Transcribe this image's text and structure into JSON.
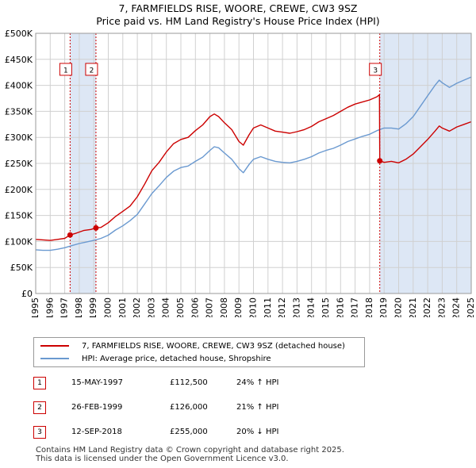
{
  "header": {
    "title": "7, FARMFIELDS RISE, WOORE, CREWE, CW3 9SZ",
    "subtitle": "Price paid vs. HM Land Registry's House Price Index (HPI)"
  },
  "colors": {
    "property": "#cc0000",
    "hpi": "#6a99d0",
    "shade": "#dde7f5",
    "grid": "#d0d0d0"
  },
  "chart_data": {
    "type": "line",
    "xlim": [
      1995,
      2025
    ],
    "ylim": [
      0,
      500000
    ],
    "y_ticks": [
      {
        "value": 0,
        "label": "£0"
      },
      {
        "value": 50000,
        "label": "£50K"
      },
      {
        "value": 100000,
        "label": "£100K"
      },
      {
        "value": 150000,
        "label": "£150K"
      },
      {
        "value": 200000,
        "label": "£200K"
      },
      {
        "value": 250000,
        "label": "£250K"
      },
      {
        "value": 300000,
        "label": "£300K"
      },
      {
        "value": 350000,
        "label": "£350K"
      },
      {
        "value": 400000,
        "label": "£400K"
      },
      {
        "value": 450000,
        "label": "£450K"
      },
      {
        "value": 500000,
        "label": "£500K"
      }
    ],
    "x_ticks": [
      "1995",
      "1996",
      "1997",
      "1998",
      "1999",
      "2000",
      "2001",
      "2002",
      "2003",
      "2004",
      "2005",
      "2006",
      "2007",
      "2008",
      "2009",
      "2010",
      "2011",
      "2012",
      "2013",
      "2014",
      "2015",
      "2016",
      "2017",
      "2018",
      "2019",
      "2020",
      "2021",
      "2022",
      "2023",
      "2024",
      "2025"
    ],
    "shaded_spans": [
      [
        1997.37,
        1999.15
      ],
      [
        2018.7,
        2025
      ]
    ],
    "series": [
      {
        "name": "7, FARMFIELDS RISE, WOORE, CREWE, CW3 9SZ (detached house)",
        "color": "#cc0000",
        "points": [
          [
            1995.0,
            104000
          ],
          [
            1995.5,
            103000
          ],
          [
            1996.0,
            102000
          ],
          [
            1996.5,
            104000
          ],
          [
            1997.0,
            106000
          ],
          [
            1997.37,
            112500
          ],
          [
            1997.8,
            116000
          ],
          [
            1998.3,
            121000
          ],
          [
            1998.8,
            123000
          ],
          [
            1999.15,
            126000
          ],
          [
            1999.5,
            127000
          ],
          [
            2000.0,
            136000
          ],
          [
            2000.5,
            148000
          ],
          [
            2001.0,
            158000
          ],
          [
            2001.5,
            168000
          ],
          [
            2002.0,
            186000
          ],
          [
            2002.5,
            210000
          ],
          [
            2003.0,
            236000
          ],
          [
            2003.5,
            252000
          ],
          [
            2004.0,
            272000
          ],
          [
            2004.5,
            288000
          ],
          [
            2005.0,
            296000
          ],
          [
            2005.5,
            300000
          ],
          [
            2006.0,
            313000
          ],
          [
            2006.5,
            324000
          ],
          [
            2007.0,
            340000
          ],
          [
            2007.3,
            345000
          ],
          [
            2007.6,
            340000
          ],
          [
            2008.0,
            328000
          ],
          [
            2008.5,
            315000
          ],
          [
            2009.0,
            292000
          ],
          [
            2009.3,
            285000
          ],
          [
            2009.7,
            305000
          ],
          [
            2010.0,
            318000
          ],
          [
            2010.5,
            324000
          ],
          [
            2011.0,
            318000
          ],
          [
            2011.5,
            312000
          ],
          [
            2012.0,
            310000
          ],
          [
            2012.5,
            308000
          ],
          [
            2013.0,
            311000
          ],
          [
            2013.5,
            315000
          ],
          [
            2014.0,
            321000
          ],
          [
            2014.5,
            330000
          ],
          [
            2015.0,
            336000
          ],
          [
            2015.5,
            342000
          ],
          [
            2016.0,
            350000
          ],
          [
            2016.5,
            358000
          ],
          [
            2017.0,
            364000
          ],
          [
            2017.5,
            368000
          ],
          [
            2018.0,
            372000
          ],
          [
            2018.5,
            378000
          ],
          [
            2018.68,
            382000
          ],
          [
            2018.7,
            255000
          ],
          [
            2019.0,
            252000
          ],
          [
            2019.5,
            254000
          ],
          [
            2020.0,
            251000
          ],
          [
            2020.5,
            258000
          ],
          [
            2021.0,
            268000
          ],
          [
            2021.5,
            282000
          ],
          [
            2022.0,
            296000
          ],
          [
            2022.5,
            312000
          ],
          [
            2022.8,
            322000
          ],
          [
            2023.0,
            318000
          ],
          [
            2023.5,
            312000
          ],
          [
            2024.0,
            320000
          ],
          [
            2024.5,
            325000
          ],
          [
            2025.0,
            330000
          ]
        ]
      },
      {
        "name": "HPI: Average price, detached house, Shropshire",
        "color": "#6a99d0",
        "points": [
          [
            1995.0,
            84000
          ],
          [
            1995.5,
            83000
          ],
          [
            1996.0,
            83000
          ],
          [
            1996.5,
            85000
          ],
          [
            1997.0,
            88000
          ],
          [
            1997.5,
            92000
          ],
          [
            1998.0,
            96000
          ],
          [
            1998.5,
            99000
          ],
          [
            1999.0,
            102000
          ],
          [
            1999.5,
            106000
          ],
          [
            2000.0,
            112000
          ],
          [
            2000.5,
            122000
          ],
          [
            2001.0,
            130000
          ],
          [
            2001.5,
            140000
          ],
          [
            2002.0,
            152000
          ],
          [
            2002.5,
            172000
          ],
          [
            2003.0,
            192000
          ],
          [
            2003.5,
            207000
          ],
          [
            2004.0,
            223000
          ],
          [
            2004.5,
            235000
          ],
          [
            2005.0,
            242000
          ],
          [
            2005.5,
            245000
          ],
          [
            2006.0,
            254000
          ],
          [
            2006.5,
            262000
          ],
          [
            2007.0,
            275000
          ],
          [
            2007.3,
            282000
          ],
          [
            2007.6,
            280000
          ],
          [
            2008.0,
            270000
          ],
          [
            2008.5,
            258000
          ],
          [
            2009.0,
            240000
          ],
          [
            2009.3,
            232000
          ],
          [
            2009.7,
            248000
          ],
          [
            2010.0,
            258000
          ],
          [
            2010.5,
            263000
          ],
          [
            2011.0,
            258000
          ],
          [
            2011.5,
            254000
          ],
          [
            2012.0,
            252000
          ],
          [
            2012.5,
            251000
          ],
          [
            2013.0,
            254000
          ],
          [
            2013.5,
            258000
          ],
          [
            2014.0,
            263000
          ],
          [
            2014.5,
            270000
          ],
          [
            2015.0,
            275000
          ],
          [
            2015.5,
            279000
          ],
          [
            2016.0,
            285000
          ],
          [
            2016.5,
            292000
          ],
          [
            2017.0,
            297000
          ],
          [
            2017.5,
            302000
          ],
          [
            2018.0,
            306000
          ],
          [
            2018.5,
            313000
          ],
          [
            2019.0,
            318000
          ],
          [
            2019.5,
            318000
          ],
          [
            2020.0,
            316000
          ],
          [
            2020.5,
            326000
          ],
          [
            2021.0,
            340000
          ],
          [
            2021.5,
            360000
          ],
          [
            2022.0,
            380000
          ],
          [
            2022.5,
            400000
          ],
          [
            2022.8,
            410000
          ],
          [
            2023.0,
            405000
          ],
          [
            2023.5,
            396000
          ],
          [
            2024.0,
            404000
          ],
          [
            2024.5,
            410000
          ],
          [
            2025.0,
            416000
          ]
        ]
      }
    ],
    "sales": [
      {
        "num": "1",
        "date": "15-MAY-1997",
        "price": "£112,500",
        "hpi": "24% ↑ HPI",
        "x": 1997.37,
        "value": 112500
      },
      {
        "num": "2",
        "date": "26-FEB-1999",
        "price": "£126,000",
        "hpi": "21% ↑ HPI",
        "x": 1999.15,
        "value": 126000
      },
      {
        "num": "3",
        "date": "12-SEP-2018",
        "price": "£255,000",
        "hpi": "20% ↓ HPI",
        "x": 2018.7,
        "value": 255000
      }
    ]
  },
  "legend": {
    "property": "7, FARMFIELDS RISE, WOORE, CREWE, CW3 9SZ (detached house)",
    "hpi": "HPI: Average price, detached house, Shropshire"
  },
  "footer": {
    "line1": "Contains HM Land Registry data © Crown copyright and database right 2025.",
    "line2": "This data is licensed under the Open Government Licence v3.0."
  }
}
